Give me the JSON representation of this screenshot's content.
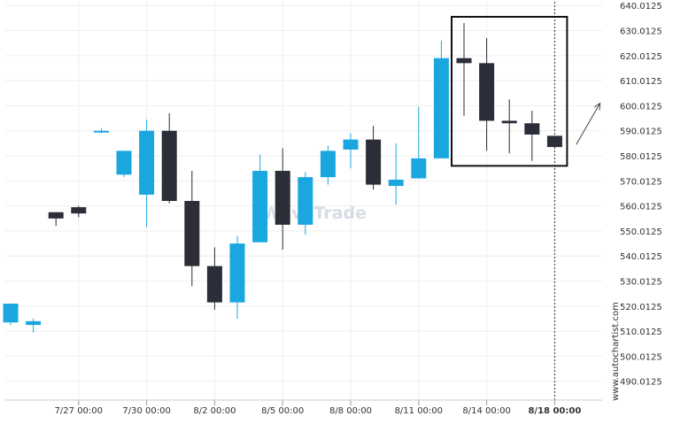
{
  "watermark": "WaveTrade",
  "brand": "www.autochartist.com",
  "colors": {
    "bull": "#1aa7e0",
    "bear": "#2b2d38",
    "grid": "#eeeeee",
    "axis_text": "#333333",
    "box": "#111111",
    "dashed": "#333333",
    "watermark": "#d6dde4"
  },
  "chart_data": {
    "type": "candlestick",
    "ylim": [
      482.5,
      641.5
    ],
    "y_ticks": [
      640.0125,
      630.0125,
      620.0125,
      610.0125,
      600.0125,
      590.0125,
      580.0125,
      570.0125,
      560.0125,
      550.0125,
      540.0125,
      530.0125,
      520.0125,
      510.0125,
      500.0125,
      490.0125
    ],
    "y_tick_labels": [
      "640.0125",
      "630.0125",
      "620.0125",
      "610.0125",
      "600.0125",
      "590.0125",
      "580.0125",
      "570.0125",
      "560.0125",
      "550.0125",
      "540.0125",
      "530.0125",
      "520.0125",
      "510.0125",
      "500.0125",
      "490.0125"
    ],
    "x_range": [
      -0.3,
      24.5
    ],
    "x_ticks": [
      {
        "index": 3,
        "label": "7/27 00:00",
        "bold": false
      },
      {
        "index": 6,
        "label": "7/30 00:00",
        "bold": false
      },
      {
        "index": 9,
        "label": "8/2 00:00",
        "bold": false
      },
      {
        "index": 12,
        "label": "8/5 00:00",
        "bold": false
      },
      {
        "index": 15,
        "label": "8/8 00:00",
        "bold": false
      },
      {
        "index": 18,
        "label": "8/11 00:00",
        "bold": false
      },
      {
        "index": 21,
        "label": "8/14 00:00",
        "bold": false
      },
      {
        "index": 24,
        "label": "8/18 00:00",
        "bold": true
      }
    ],
    "candles": [
      {
        "open": 513.5,
        "high": 521.0,
        "low": 512.5,
        "close": 521.0
      },
      {
        "open": 512.5,
        "high": 515.0,
        "low": 509.5,
        "close": 514.0
      },
      {
        "open": 557.5,
        "high": 557.5,
        "low": 552.0,
        "close": 555.0
      },
      {
        "open": 559.5,
        "high": 560.0,
        "low": 555.5,
        "close": 557.0
      },
      {
        "open": 590.0,
        "high": 591.0,
        "low": 589.0,
        "close": 590.0
      },
      {
        "open": 572.5,
        "high": 582.0,
        "low": 571.5,
        "close": 582.0
      },
      {
        "open": 564.5,
        "high": 594.5,
        "low": 551.5,
        "close": 590.0
      },
      {
        "open": 590.0,
        "high": 597.0,
        "low": 561.0,
        "close": 562.0
      },
      {
        "open": 562.0,
        "high": 574.0,
        "low": 528.0,
        "close": 536.0
      },
      {
        "open": 536.0,
        "high": 543.5,
        "low": 518.5,
        "close": 521.5
      },
      {
        "open": 521.5,
        "high": 548.0,
        "low": 515.0,
        "close": 545.0
      },
      {
        "open": 545.5,
        "high": 580.5,
        "low": 545.5,
        "close": 574.0
      },
      {
        "open": 574.0,
        "high": 583.0,
        "low": 542.5,
        "close": 552.5
      },
      {
        "open": 552.5,
        "high": 573.5,
        "low": 548.5,
        "close": 571.5
      },
      {
        "open": 571.5,
        "high": 584.0,
        "low": 568.5,
        "close": 582.0
      },
      {
        "open": 582.5,
        "high": 589.0,
        "low": 575.0,
        "close": 586.5
      },
      {
        "open": 586.5,
        "high": 592.0,
        "low": 566.5,
        "close": 568.5
      },
      {
        "open": 568.0,
        "high": 585.0,
        "low": 560.5,
        "close": 570.5
      },
      {
        "open": 571.0,
        "high": 599.5,
        "low": 571.0,
        "close": 579.0
      },
      {
        "open": 579.0,
        "high": 626.0,
        "low": 579.0,
        "close": 619.0
      },
      {
        "open": 619.0,
        "high": 633.0,
        "low": 596.0,
        "close": 617.0
      },
      {
        "open": 617.0,
        "high": 627.0,
        "low": 582.0,
        "close": 594.0
      },
      {
        "open": 594.0,
        "high": 602.5,
        "low": 581.0,
        "close": 593.0
      },
      {
        "open": 593.0,
        "high": 598.0,
        "low": 578.0,
        "close": 588.5
      },
      {
        "open": 588.0,
        "high": 588.0,
        "low": 583.5,
        "close": 583.5
      }
    ],
    "pattern_box": {
      "start_index": 20,
      "end_index": 24,
      "high": 635.5,
      "low": 576.0
    },
    "arrow": {
      "from": [
        24.95,
        584.5
      ],
      "to": [
        26.0,
        601.0
      ]
    },
    "last_candle_marker_index": 24
  }
}
